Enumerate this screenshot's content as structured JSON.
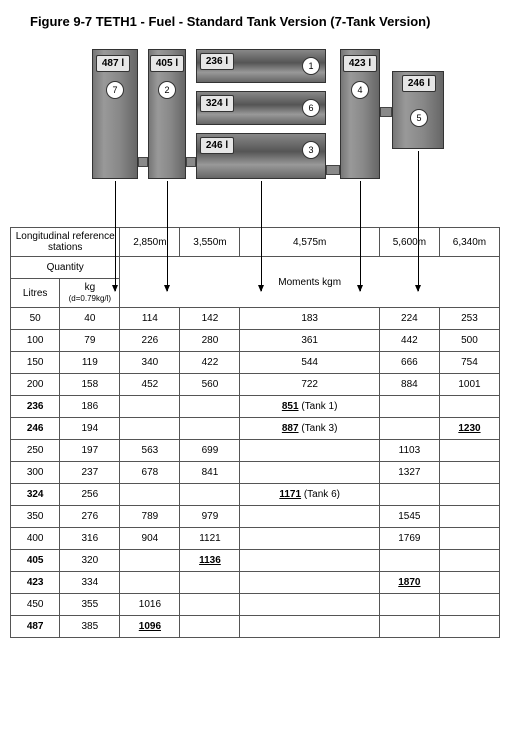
{
  "title": "Figure 9-7    TETH1 - Fuel - Standard Tank Version (7-Tank Version)",
  "tanks": {
    "t1": {
      "label": "236 l",
      "num": "1"
    },
    "t2": {
      "label": "405 l",
      "num": "2"
    },
    "t3": {
      "label": "246 l",
      "num": "3"
    },
    "t4": {
      "label": "423 l",
      "num": "4"
    },
    "t5": {
      "label": "246 l",
      "num": "5"
    },
    "t6": {
      "label": "324 l",
      "num": "6"
    },
    "t7": {
      "label": "487 l",
      "num": "7"
    }
  },
  "stations_label": "Longitudinal reference stations",
  "stations": [
    "2,850m",
    "3,550m",
    "4,575m",
    "5,600m",
    "6,340m"
  ],
  "quantity_label": "Quantity",
  "litres_label": "Litres",
  "kg_label": "kg",
  "density_label": "(d=0.79kg/l)",
  "moments_label": "Moments   kgm",
  "rows": [
    {
      "l": "50",
      "kg": "40",
      "a": "114",
      "b": "142",
      "c": "183",
      "d": "224",
      "e": "253"
    },
    {
      "l": "100",
      "kg": "79",
      "a": "226",
      "b": "280",
      "c": "361",
      "d": "442",
      "e": "500"
    },
    {
      "l": "150",
      "kg": "119",
      "a": "340",
      "b": "422",
      "c": "544",
      "d": "666",
      "e": "754"
    },
    {
      "l": "200",
      "kg": "158",
      "a": "452",
      "b": "560",
      "c": "722",
      "d": "884",
      "e": "1001"
    },
    {
      "l": "236",
      "kg": "186",
      "a": "",
      "b": "",
      "c": "851 (Tank 1)",
      "c_ul": "851",
      "d": "",
      "e": "",
      "bold_l": true
    },
    {
      "l": "246",
      "kg": "194",
      "a": "",
      "b": "",
      "c": "887 (Tank 3)",
      "c_ul": "887",
      "d": "",
      "e": "1230",
      "e_ul": true,
      "bold_l": true
    },
    {
      "l": "250",
      "kg": "197",
      "a": "563",
      "b": "699",
      "c": "",
      "d": "1103",
      "e": ""
    },
    {
      "l": "300",
      "kg": "237",
      "a": "678",
      "b": "841",
      "c": "",
      "d": "1327",
      "e": ""
    },
    {
      "l": "324",
      "kg": "256",
      "a": "",
      "b": "",
      "c": "1171 (Tank 6)",
      "c_ul": "1171",
      "d": "",
      "e": "",
      "bold_l": true
    },
    {
      "l": "350",
      "kg": "276",
      "a": "789",
      "b": "979",
      "c": "",
      "d": "1545",
      "e": ""
    },
    {
      "l": "400",
      "kg": "316",
      "a": "904",
      "b": "1121",
      "c": "",
      "d": "1769",
      "e": ""
    },
    {
      "l": "405",
      "kg": "320",
      "a": "",
      "b": "1136",
      "b_ul": true,
      "c": "",
      "d": "",
      "e": "",
      "bold_l": true
    },
    {
      "l": "423",
      "kg": "334",
      "a": "",
      "b": "",
      "c": "",
      "d": "1870",
      "d_ul": true,
      "e": "",
      "bold_l": true
    },
    {
      "l": "450",
      "kg": "355",
      "a": "1016",
      "b": "",
      "c": "",
      "d": "",
      "e": ""
    },
    {
      "l": "487",
      "kg": "385",
      "a": "1096",
      "a_ul": true,
      "b": "",
      "c": "",
      "d": "",
      "e": "",
      "bold_l": true
    }
  ]
}
